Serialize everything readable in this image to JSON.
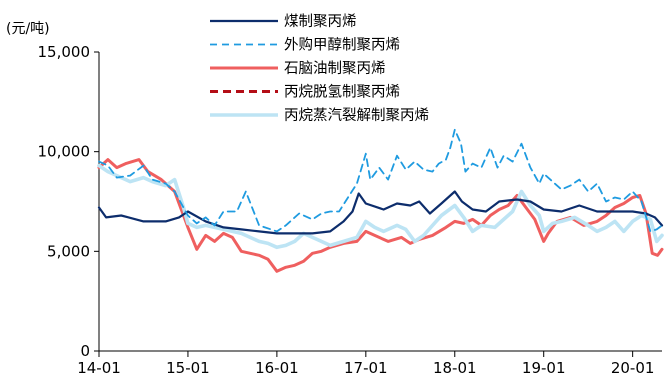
{
  "chart_data": {
    "type": "line",
    "unit_label": "(元/吨)",
    "title": "",
    "xlabel": "",
    "ylabel": "",
    "ylim": [
      0,
      15000
    ],
    "yticks": [
      0,
      5000,
      10000,
      15000
    ],
    "ytick_labels": [
      "0",
      "5,000",
      "10,000",
      "15,000"
    ],
    "xlim": [
      2014.0,
      2020.33
    ],
    "xticks": [
      2014,
      2015,
      2016,
      2017,
      2018,
      2019,
      2020
    ],
    "xtick_labels": [
      "14-01",
      "15-01",
      "16-01",
      "17-01",
      "18-01",
      "19-01",
      "20-01"
    ],
    "grid": false,
    "legend_position": "top-center",
    "series": [
      {
        "name": "煤制聚丙烯",
        "color": "#0d2d6c",
        "dash": "solid",
        "points": [
          [
            2014.0,
            7200
          ],
          [
            2014.08,
            6700
          ],
          [
            2014.25,
            6800
          ],
          [
            2014.5,
            6500
          ],
          [
            2014.75,
            6500
          ],
          [
            2014.9,
            6700
          ],
          [
            2015.0,
            7000
          ],
          [
            2015.2,
            6500
          ],
          [
            2015.4,
            6200
          ],
          [
            2015.6,
            6100
          ],
          [
            2015.8,
            6000
          ],
          [
            2016.0,
            5900
          ],
          [
            2016.2,
            5900
          ],
          [
            2016.4,
            5900
          ],
          [
            2016.6,
            6000
          ],
          [
            2016.75,
            6500
          ],
          [
            2016.85,
            7000
          ],
          [
            2016.92,
            7900
          ],
          [
            2017.0,
            7400
          ],
          [
            2017.2,
            7100
          ],
          [
            2017.35,
            7400
          ],
          [
            2017.5,
            7300
          ],
          [
            2017.6,
            7500
          ],
          [
            2017.72,
            6900
          ],
          [
            2017.85,
            7400
          ],
          [
            2018.0,
            8000
          ],
          [
            2018.08,
            7500
          ],
          [
            2018.2,
            7100
          ],
          [
            2018.35,
            7000
          ],
          [
            2018.5,
            7500
          ],
          [
            2018.7,
            7600
          ],
          [
            2018.85,
            7500
          ],
          [
            2019.0,
            7100
          ],
          [
            2019.2,
            7000
          ],
          [
            2019.4,
            7300
          ],
          [
            2019.6,
            7000
          ],
          [
            2019.8,
            7000
          ],
          [
            2020.0,
            7000
          ],
          [
            2020.15,
            6900
          ],
          [
            2020.25,
            6700
          ],
          [
            2020.33,
            6300
          ]
        ]
      },
      {
        "name": "外购甲醇制聚丙烯",
        "color": "#1f9be0",
        "dash": "dashed",
        "points": [
          [
            2014.0,
            9500
          ],
          [
            2014.1,
            9300
          ],
          [
            2014.2,
            8700
          ],
          [
            2014.35,
            8800
          ],
          [
            2014.5,
            9300
          ],
          [
            2014.6,
            8600
          ],
          [
            2014.75,
            8400
          ],
          [
            2014.85,
            8000
          ],
          [
            2015.0,
            6800
          ],
          [
            2015.1,
            6400
          ],
          [
            2015.2,
            6700
          ],
          [
            2015.3,
            6300
          ],
          [
            2015.4,
            7000
          ],
          [
            2015.55,
            7000
          ],
          [
            2015.65,
            8000
          ],
          [
            2015.8,
            6300
          ],
          [
            2016.0,
            6000
          ],
          [
            2016.1,
            6300
          ],
          [
            2016.25,
            6900
          ],
          [
            2016.4,
            6600
          ],
          [
            2016.5,
            6900
          ],
          [
            2016.6,
            7000
          ],
          [
            2016.7,
            7000
          ],
          [
            2016.8,
            7700
          ],
          [
            2016.9,
            8400
          ],
          [
            2017.0,
            9900
          ],
          [
            2017.05,
            8600
          ],
          [
            2017.15,
            9200
          ],
          [
            2017.25,
            8600
          ],
          [
            2017.35,
            9800
          ],
          [
            2017.45,
            9100
          ],
          [
            2017.55,
            9500
          ],
          [
            2017.65,
            9100
          ],
          [
            2017.75,
            9000
          ],
          [
            2017.82,
            9400
          ],
          [
            2017.9,
            9600
          ],
          [
            2017.95,
            10200
          ],
          [
            2018.0,
            11100
          ],
          [
            2018.07,
            10400
          ],
          [
            2018.12,
            9000
          ],
          [
            2018.2,
            9400
          ],
          [
            2018.3,
            9200
          ],
          [
            2018.4,
            10200
          ],
          [
            2018.48,
            9200
          ],
          [
            2018.55,
            9800
          ],
          [
            2018.65,
            9500
          ],
          [
            2018.75,
            10400
          ],
          [
            2018.85,
            9200
          ],
          [
            2018.95,
            8400
          ],
          [
            2019.0,
            8900
          ],
          [
            2019.1,
            8500
          ],
          [
            2019.2,
            8100
          ],
          [
            2019.3,
            8300
          ],
          [
            2019.4,
            8600
          ],
          [
            2019.5,
            8000
          ],
          [
            2019.6,
            8400
          ],
          [
            2019.7,
            7500
          ],
          [
            2019.8,
            7700
          ],
          [
            2019.9,
            7600
          ],
          [
            2020.0,
            8000
          ],
          [
            2020.1,
            7500
          ],
          [
            2020.2,
            6000
          ],
          [
            2020.27,
            6100
          ],
          [
            2020.33,
            6300
          ]
        ]
      },
      {
        "name": "石脑油制聚丙烯",
        "color": "#ef5f5f",
        "dash": "solid",
        "points": [
          [
            2014.0,
            9200
          ],
          [
            2014.1,
            9600
          ],
          [
            2014.2,
            9200
          ],
          [
            2014.3,
            9400
          ],
          [
            2014.45,
            9600
          ],
          [
            2014.55,
            9000
          ],
          [
            2014.7,
            8600
          ],
          [
            2014.85,
            8000
          ],
          [
            2014.95,
            6800
          ],
          [
            2015.0,
            6200
          ],
          [
            2015.1,
            5100
          ],
          [
            2015.2,
            5800
          ],
          [
            2015.3,
            5500
          ],
          [
            2015.4,
            5900
          ],
          [
            2015.5,
            5700
          ],
          [
            2015.6,
            5000
          ],
          [
            2015.7,
            4900
          ],
          [
            2015.8,
            4800
          ],
          [
            2015.9,
            4600
          ],
          [
            2016.0,
            4000
          ],
          [
            2016.1,
            4200
          ],
          [
            2016.2,
            4300
          ],
          [
            2016.3,
            4500
          ],
          [
            2016.4,
            4900
          ],
          [
            2016.5,
            5000
          ],
          [
            2016.6,
            5200
          ],
          [
            2016.75,
            5400
          ],
          [
            2016.9,
            5500
          ],
          [
            2017.0,
            6000
          ],
          [
            2017.1,
            5800
          ],
          [
            2017.25,
            5500
          ],
          [
            2017.4,
            5700
          ],
          [
            2017.5,
            5400
          ],
          [
            2017.6,
            5600
          ],
          [
            2017.75,
            5800
          ],
          [
            2017.9,
            6200
          ],
          [
            2018.0,
            6500
          ],
          [
            2018.1,
            6400
          ],
          [
            2018.2,
            6600
          ],
          [
            2018.3,
            6300
          ],
          [
            2018.4,
            6800
          ],
          [
            2018.5,
            7100
          ],
          [
            2018.6,
            7300
          ],
          [
            2018.7,
            7800
          ],
          [
            2018.8,
            7200
          ],
          [
            2018.9,
            6600
          ],
          [
            2019.0,
            5500
          ],
          [
            2019.05,
            5900
          ],
          [
            2019.15,
            6500
          ],
          [
            2019.3,
            6700
          ],
          [
            2019.45,
            6300
          ],
          [
            2019.6,
            6500
          ],
          [
            2019.7,
            6800
          ],
          [
            2019.8,
            7200
          ],
          [
            2019.9,
            7400
          ],
          [
            2020.0,
            7700
          ],
          [
            2020.08,
            7800
          ],
          [
            2020.15,
            6900
          ],
          [
            2020.22,
            4900
          ],
          [
            2020.28,
            4800
          ],
          [
            2020.33,
            5100
          ]
        ]
      },
      {
        "name": "丙烷脱氢制聚丙烯",
        "color": "#b40d16",
        "dash": "dashed",
        "points": []
      },
      {
        "name": "丙烷蒸汽裂解制聚丙烯",
        "color": "#bde4f4",
        "dash": "solid",
        "points": [
          [
            2014.0,
            9300
          ],
          [
            2014.1,
            9000
          ],
          [
            2014.2,
            8800
          ],
          [
            2014.35,
            8500
          ],
          [
            2014.5,
            8700
          ],
          [
            2014.6,
            8500
          ],
          [
            2014.75,
            8300
          ],
          [
            2014.85,
            8600
          ],
          [
            2014.95,
            7200
          ],
          [
            2015.0,
            6400
          ],
          [
            2015.1,
            6200
          ],
          [
            2015.2,
            6300
          ],
          [
            2015.3,
            6200
          ],
          [
            2015.4,
            6100
          ],
          [
            2015.5,
            6000
          ],
          [
            2015.6,
            5900
          ],
          [
            2015.7,
            5700
          ],
          [
            2015.8,
            5500
          ],
          [
            2015.9,
            5400
          ],
          [
            2016.0,
            5200
          ],
          [
            2016.1,
            5300
          ],
          [
            2016.2,
            5500
          ],
          [
            2016.3,
            5900
          ],
          [
            2016.4,
            5700
          ],
          [
            2016.5,
            5500
          ],
          [
            2016.6,
            5300
          ],
          [
            2016.75,
            5500
          ],
          [
            2016.9,
            5700
          ],
          [
            2017.0,
            6500
          ],
          [
            2017.1,
            6200
          ],
          [
            2017.2,
            6000
          ],
          [
            2017.35,
            6300
          ],
          [
            2017.45,
            6100
          ],
          [
            2017.55,
            5500
          ],
          [
            2017.65,
            5800
          ],
          [
            2017.75,
            6300
          ],
          [
            2017.85,
            6800
          ],
          [
            2018.0,
            7300
          ],
          [
            2018.1,
            6700
          ],
          [
            2018.2,
            6000
          ],
          [
            2018.3,
            6300
          ],
          [
            2018.45,
            6200
          ],
          [
            2018.55,
            6600
          ],
          [
            2018.65,
            7000
          ],
          [
            2018.75,
            8000
          ],
          [
            2018.85,
            7300
          ],
          [
            2018.95,
            6800
          ],
          [
            2019.0,
            6000
          ],
          [
            2019.1,
            6400
          ],
          [
            2019.2,
            6500
          ],
          [
            2019.35,
            6700
          ],
          [
            2019.5,
            6300
          ],
          [
            2019.6,
            6000
          ],
          [
            2019.7,
            6200
          ],
          [
            2019.8,
            6500
          ],
          [
            2019.9,
            6000
          ],
          [
            2020.0,
            6500
          ],
          [
            2020.1,
            6800
          ],
          [
            2020.2,
            6600
          ],
          [
            2020.27,
            5500
          ],
          [
            2020.33,
            5800
          ]
        ]
      }
    ]
  }
}
